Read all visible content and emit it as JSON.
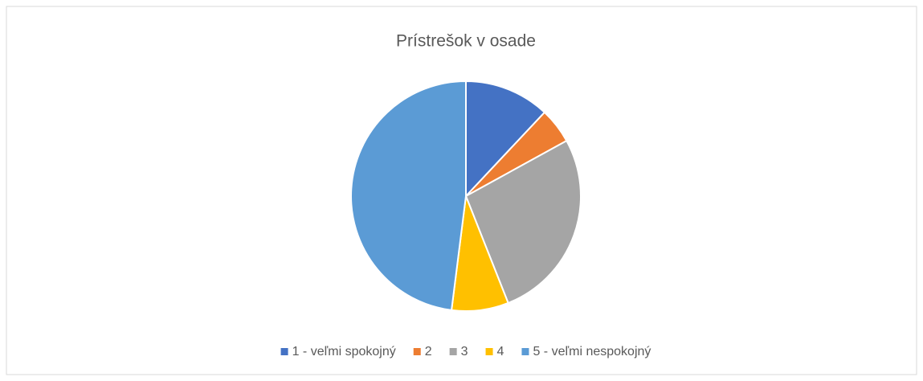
{
  "chart_data": {
    "type": "pie",
    "title": "Prístrešok v osade",
    "categories": [
      "1 - veľmi spokojný",
      "2",
      "3",
      "4",
      "5 - veľmi nespokojný"
    ],
    "values": [
      12,
      5,
      27,
      8,
      48
    ],
    "colors": [
      "#4472c4",
      "#ed7d31",
      "#a5a5a5",
      "#ffc000",
      "#5b9bd5"
    ],
    "legend": "bottom"
  }
}
